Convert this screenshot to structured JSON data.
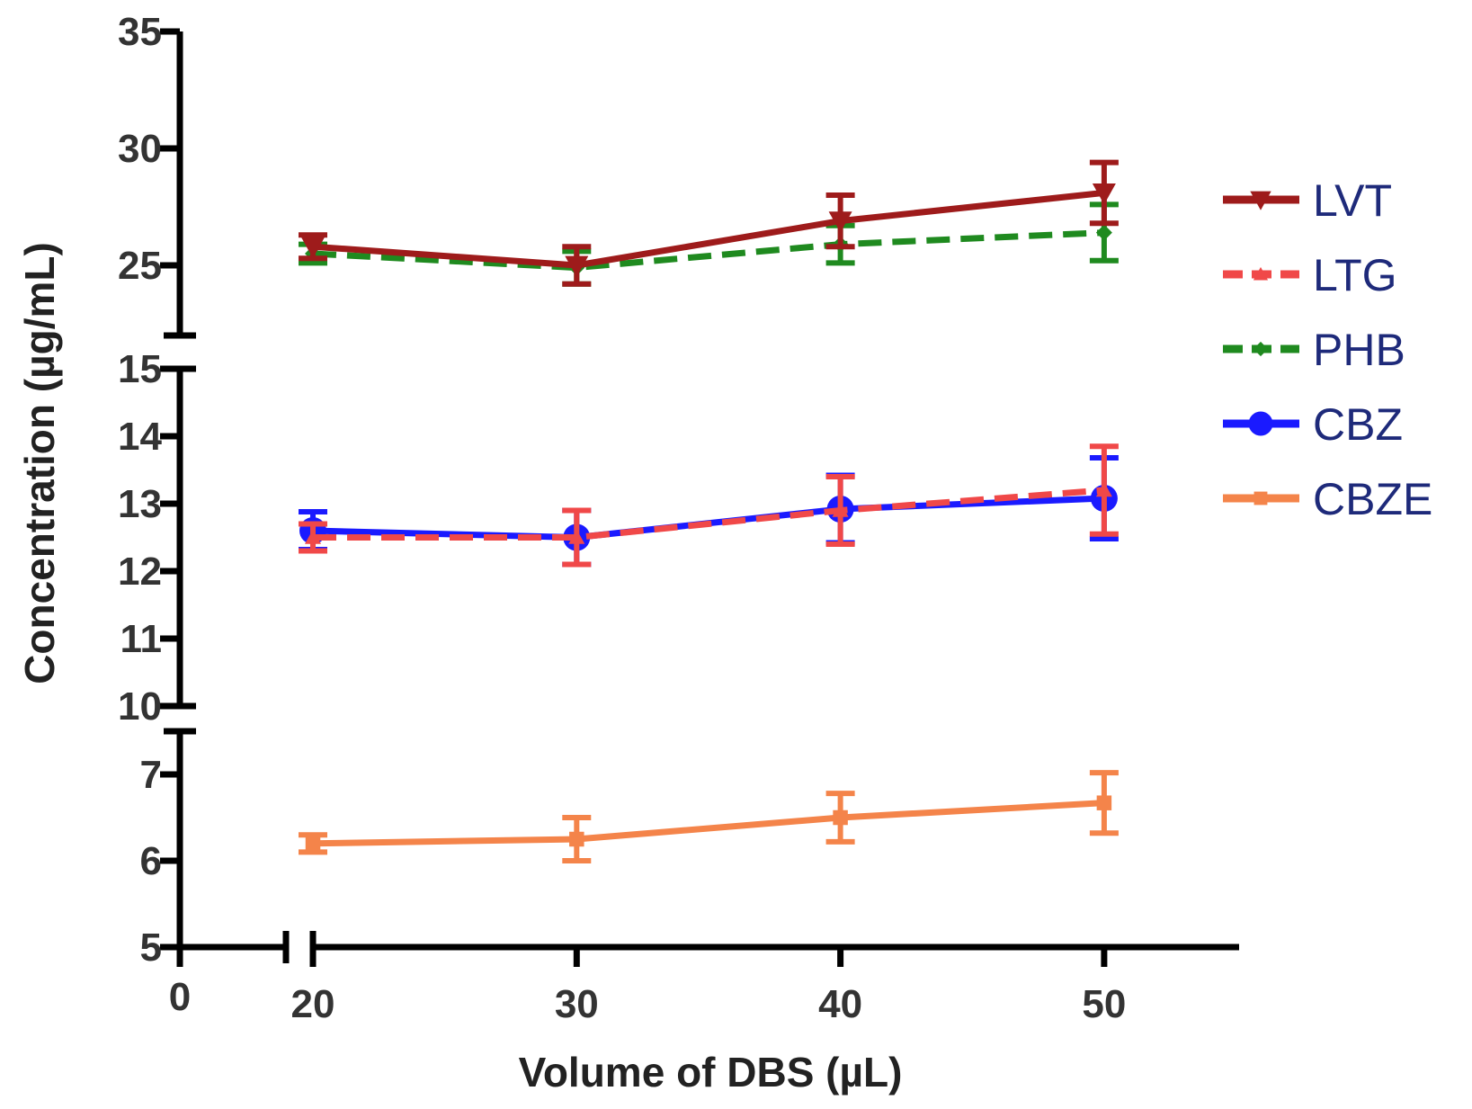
{
  "chart_data": {
    "type": "line",
    "xlabel": "Volume of DBS (µL)",
    "ylabel": "Concentration (µg/mL)",
    "x_ticks": [
      "0",
      "20",
      "30",
      "40",
      "50"
    ],
    "x": [
      20,
      30,
      40,
      50
    ],
    "y_segments": [
      {
        "range": [
          5,
          7.5
        ],
        "ticks": [
          "5",
          "6",
          "7"
        ]
      },
      {
        "range": [
          10,
          15
        ],
        "ticks": [
          "10",
          "11",
          "12",
          "13",
          "14",
          "15"
        ]
      },
      {
        "range": [
          22,
          35
        ],
        "ticks": [
          "25",
          "30",
          "35"
        ]
      }
    ],
    "series": [
      {
        "name": "LVT",
        "color": "#9e1b1b",
        "marker": "triangle-down",
        "dash": "solid",
        "values": [
          25.8,
          25.0,
          26.9,
          28.1
        ],
        "errors": [
          0.5,
          0.8,
          1.1,
          1.3
        ]
      },
      {
        "name": "LTG",
        "color": "#f04848",
        "marker": "triangle-up",
        "dash": "dashed",
        "values": [
          12.5,
          12.5,
          12.9,
          13.2
        ],
        "errors": [
          0.2,
          0.4,
          0.5,
          0.65
        ]
      },
      {
        "name": "PHB",
        "color": "#1f8a1f",
        "marker": "diamond",
        "dash": "dashed",
        "values": [
          25.5,
          24.9,
          25.9,
          26.4
        ],
        "errors": [
          0.4,
          0.7,
          0.8,
          1.2
        ]
      },
      {
        "name": "CBZ",
        "color": "#1a1aff",
        "marker": "circle",
        "dash": "solid",
        "values": [
          12.6,
          12.5,
          12.92,
          13.08
        ],
        "errors": [
          0.28,
          0.4,
          0.5,
          0.6
        ]
      },
      {
        "name": "CBZE",
        "color": "#f4844a",
        "marker": "square",
        "dash": "solid",
        "values": [
          6.2,
          6.25,
          6.5,
          6.67
        ],
        "errors": [
          0.1,
          0.25,
          0.28,
          0.35
        ]
      }
    ],
    "legend": {
      "position": "right"
    },
    "grid": false
  }
}
